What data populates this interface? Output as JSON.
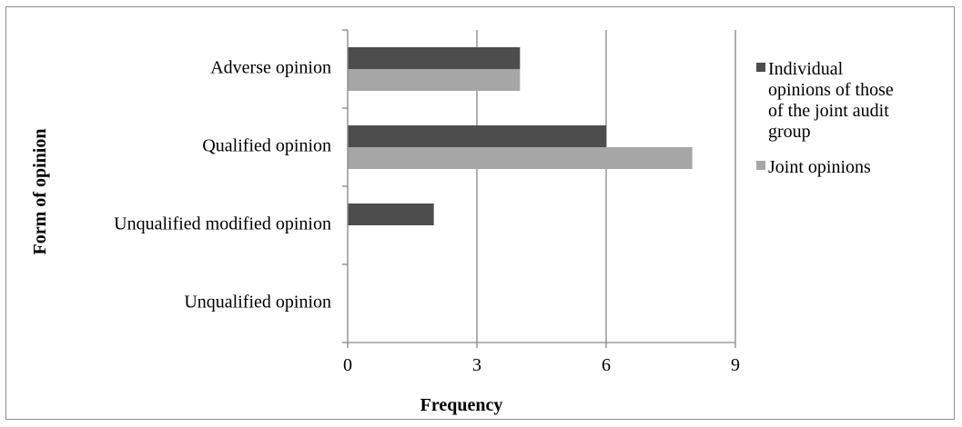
{
  "chart_data": {
    "type": "bar",
    "orientation": "horizontal",
    "title": "",
    "xlabel": "Frequency",
    "ylabel": "Form of opinion",
    "categories": [
      "Adverse opinion",
      "Qualified opinion",
      "Unqualified modified opinion",
      "Unqualified opinion"
    ],
    "series": [
      {
        "name": "Individual opinions of those of the joint audit group",
        "legend_lines": [
          "Individual",
          "opinions of those",
          "of the joint audit",
          "group"
        ],
        "color": "#4d4d4d",
        "values": [
          4,
          6,
          2,
          0
        ]
      },
      {
        "name": "Joint opinions",
        "legend_lines": [
          "Joint opinions"
        ],
        "color": "#a6a6a6",
        "values": [
          4,
          8,
          0,
          0
        ]
      }
    ],
    "xlim": [
      0,
      9
    ],
    "xticks": [
      "0",
      "3",
      "6",
      "9"
    ],
    "grid": true,
    "legend_position": "right"
  }
}
